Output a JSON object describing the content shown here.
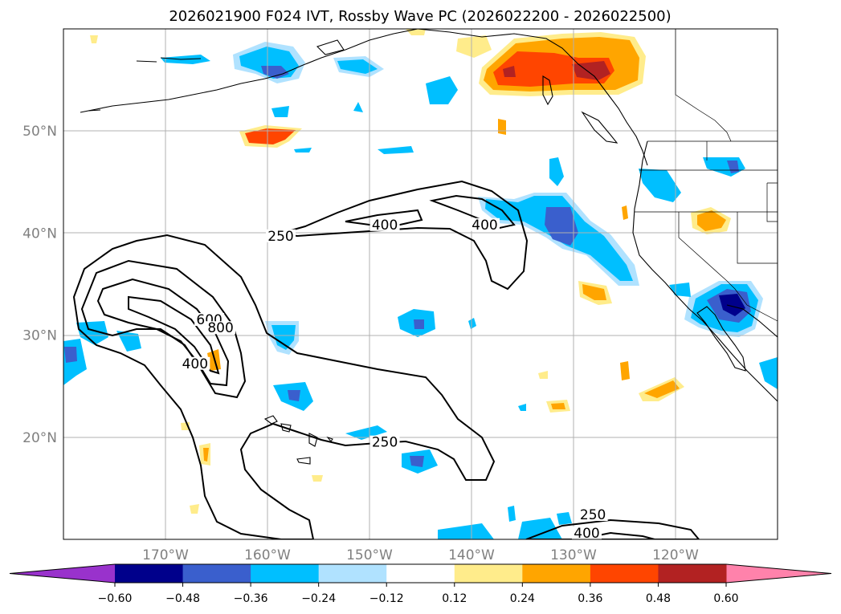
{
  "title": "2026021900 F024 IVT, Rossby Wave PC (2026022200 - 2026022500)",
  "map": {
    "lon_min": -180,
    "lon_max": -110,
    "lat_min": 10,
    "lat_max": 60,
    "lat_ticks": [
      {
        "value": 20,
        "label": "20°N"
      },
      {
        "value": 30,
        "label": "30°N"
      },
      {
        "value": 40,
        "label": "40°N"
      },
      {
        "value": 50,
        "label": "50°N"
      }
    ],
    "lon_ticks": [
      {
        "value": -170,
        "label": "170°W"
      },
      {
        "value": -160,
        "label": "160°W"
      },
      {
        "value": -150,
        "label": "150°W"
      },
      {
        "value": -140,
        "label": "140°W"
      },
      {
        "value": -130,
        "label": "130°W"
      },
      {
        "value": -120,
        "label": "120°W"
      }
    ],
    "gridlines": true
  },
  "ivt_contours": {
    "labels": [
      {
        "text": "250",
        "lon": -158.7,
        "lat": 39.5
      },
      {
        "text": "400",
        "lon": -148.5,
        "lat": 40.6
      },
      {
        "text": "400",
        "lon": -138.7,
        "lat": 40.6
      },
      {
        "text": "600",
        "lon": -165.7,
        "lat": 31.3
      },
      {
        "text": "800",
        "lon": -164.6,
        "lat": 30.5
      },
      {
        "text": "400",
        "lon": -167.1,
        "lat": 27.0
      },
      {
        "text": "250",
        "lon": -148.5,
        "lat": 19.3
      },
      {
        "text": "250",
        "lon": -128.1,
        "lat": 12.2
      },
      {
        "text": "400",
        "lon": -128.7,
        "lat": 10.4
      }
    ]
  },
  "rossby_pc": {
    "colors": {
      "neg_extend": "#9932cc",
      "n060": "#00008b",
      "n048": "#3a5fcd",
      "n036": "#00bfff",
      "n024": "#b0e2ff",
      "n012": "#ffffff",
      "p012": "#ffec8b",
      "p024": "#ffa500",
      "p036": "#ff4500",
      "p048": "#b22222",
      "pos_extend": "#ff82ab"
    },
    "colorbar": {
      "bins": [
        "#00008b",
        "#3a5fcd",
        "#00bfff",
        "#b0e2ff",
        "#ffffff",
        "#ffec8b",
        "#ffa500",
        "#ff4500",
        "#b22222"
      ],
      "ticks": [
        "−0.60",
        "−0.48",
        "−0.36",
        "−0.24",
        "−0.12",
        "0.12",
        "0.24",
        "0.36",
        "0.48",
        "0.60"
      ]
    }
  }
}
